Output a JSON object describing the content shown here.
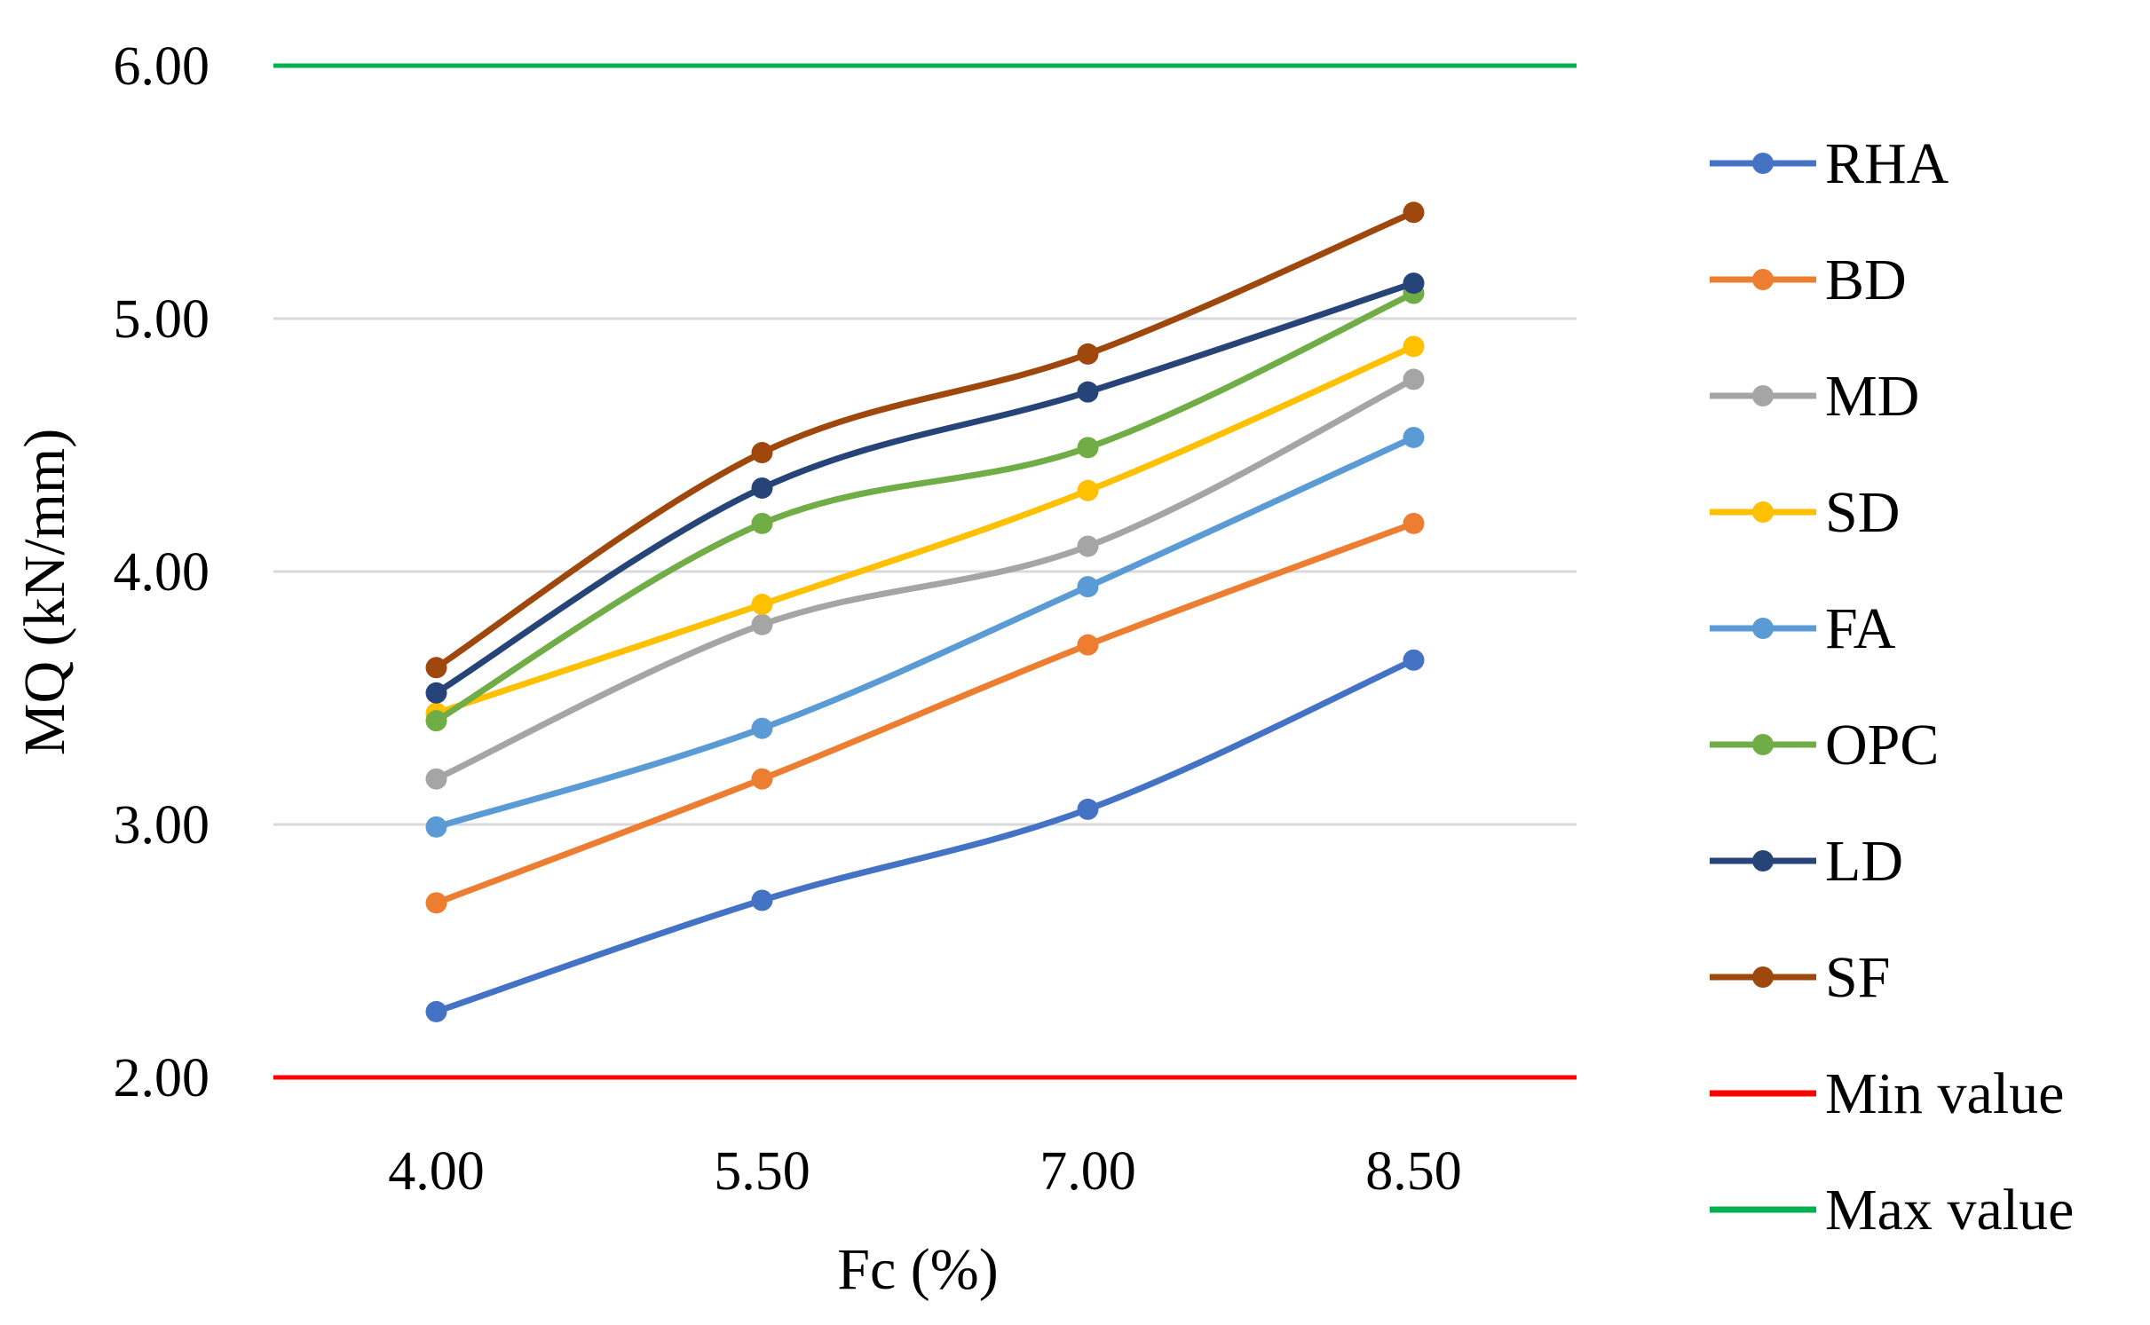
{
  "chart_data": {
    "type": "line",
    "title": "",
    "xlabel": "Fc (%)",
    "ylabel": "MQ (kN/mm)",
    "categories": [
      "4.00",
      "5.50",
      "7.00",
      "8.50"
    ],
    "x": [
      4.0,
      5.5,
      7.0,
      8.5
    ],
    "ylim": [
      2.0,
      6.0
    ],
    "yticks": [
      "2.00",
      "3.00",
      "4.00",
      "5.00",
      "6.00"
    ],
    "ytick_values": [
      2.0,
      3.0,
      4.0,
      5.0,
      6.0
    ],
    "grid": true,
    "legend_position": "right",
    "series": [
      {
        "name": "RHA",
        "color": "#4472C4",
        "values": [
          2.26,
          2.7,
          3.06,
          3.65
        ]
      },
      {
        "name": "BD",
        "color": "#ED7D31",
        "values": [
          2.69,
          3.18,
          3.71,
          4.19
        ]
      },
      {
        "name": "MD",
        "color": "#A5A5A5",
        "values": [
          3.18,
          3.79,
          4.1,
          4.76
        ]
      },
      {
        "name": "SD",
        "color": "#FFC000",
        "values": [
          3.44,
          3.87,
          4.32,
          4.89
        ]
      },
      {
        "name": "FA",
        "color": "#5B9BD5",
        "values": [
          2.99,
          3.38,
          3.94,
          4.53
        ]
      },
      {
        "name": "OPC",
        "color": "#70AD47",
        "values": [
          3.41,
          4.19,
          4.49,
          5.1
        ]
      },
      {
        "name": "LD",
        "color": "#264478",
        "values": [
          3.52,
          4.33,
          4.71,
          5.14
        ]
      },
      {
        "name": "SF",
        "color": "#9E480E",
        "values": [
          3.62,
          4.47,
          4.86,
          5.42
        ]
      }
    ],
    "reference_lines": [
      {
        "name": "Min value",
        "color": "#FF0000",
        "value": 2.0
      },
      {
        "name": "Max value",
        "color": "#00B050",
        "value": 6.0
      }
    ]
  }
}
